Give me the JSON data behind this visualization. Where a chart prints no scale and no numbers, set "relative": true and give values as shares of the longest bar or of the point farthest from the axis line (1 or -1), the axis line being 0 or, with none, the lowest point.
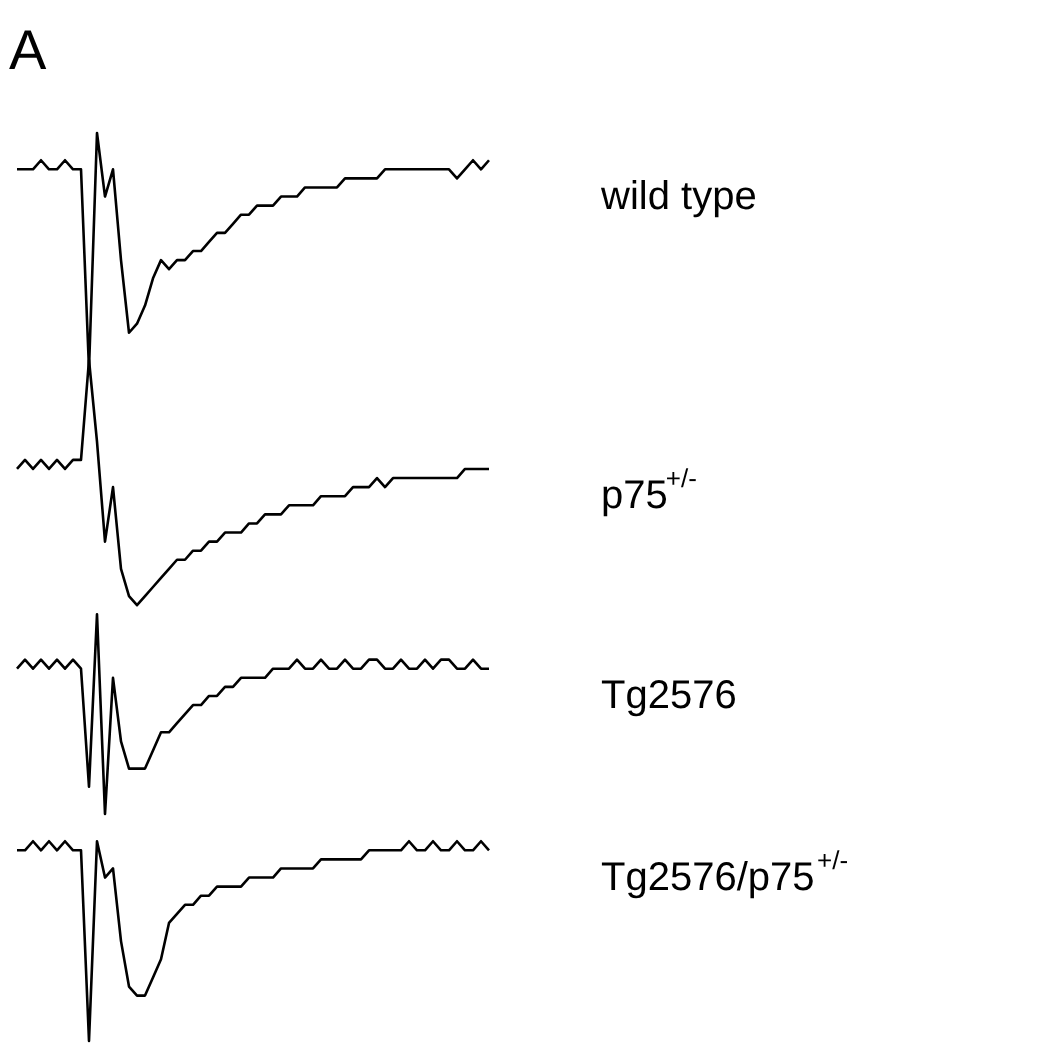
{
  "chart_data": {
    "type": "line",
    "title": "A",
    "relative": true,
    "categories": [
      null,
      null,
      null,
      null,
      null,
      null,
      null,
      null,
      null,
      null,
      null,
      null,
      null,
      null,
      null,
      null,
      null,
      null,
      null,
      null,
      null,
      null,
      null,
      null,
      null,
      null,
      null,
      null,
      null,
      null,
      null,
      null,
      null,
      null,
      null,
      null,
      null,
      null,
      null,
      null,
      null,
      null,
      null,
      null,
      null,
      null,
      null,
      null,
      null,
      null,
      null,
      null,
      null,
      null,
      null,
      null,
      null,
      null,
      null,
      null
    ],
    "series": [
      {
        "name": "wild type",
        "color": "#000000",
        "values": [
          0.96,
          0.96,
          0.96,
          0.97,
          0.96,
          0.96,
          0.97,
          0.96,
          0.96,
          0.74,
          1.0,
          0.93,
          0.96,
          0.86,
          0.78,
          0.79,
          0.81,
          0.84,
          0.86,
          0.85,
          0.86,
          0.86,
          0.87,
          0.87,
          0.88,
          0.89,
          0.89,
          0.9,
          0.91,
          0.91,
          0.92,
          0.92,
          0.92,
          0.93,
          0.93,
          0.93,
          0.94,
          0.94,
          0.94,
          0.94,
          0.94,
          0.95,
          0.95,
          0.95,
          0.95,
          0.95,
          0.96,
          0.96,
          0.96,
          0.96,
          0.96,
          0.96,
          0.96,
          0.96,
          0.96,
          0.95,
          0.96,
          0.97,
          0.96,
          0.97
        ]
      },
      {
        "name": "p75$^{+/-}$",
        "color": "#000000",
        "values": [
          0.63,
          0.64,
          0.63,
          0.64,
          0.63,
          0.64,
          0.63,
          0.64,
          0.64,
          0.75,
          0.66,
          0.55,
          0.61,
          0.52,
          0.49,
          0.48,
          0.49,
          0.5,
          0.51,
          0.52,
          0.53,
          0.53,
          0.54,
          0.54,
          0.55,
          0.55,
          0.56,
          0.56,
          0.56,
          0.57,
          0.57,
          0.58,
          0.58,
          0.58,
          0.59,
          0.59,
          0.59,
          0.59,
          0.6,
          0.6,
          0.6,
          0.6,
          0.61,
          0.61,
          0.61,
          0.62,
          0.61,
          0.62,
          0.62,
          0.62,
          0.62,
          0.62,
          0.62,
          0.62,
          0.62,
          0.62,
          0.63,
          0.63,
          0.63,
          0.63
        ]
      },
      {
        "name": "Tg2576",
        "color": "#000000",
        "values": [
          0.41,
          0.42,
          0.41,
          0.42,
          0.41,
          0.42,
          0.41,
          0.42,
          0.41,
          0.28,
          0.47,
          0.25,
          0.4,
          0.33,
          0.3,
          0.3,
          0.3,
          0.32,
          0.34,
          0.34,
          0.35,
          0.36,
          0.37,
          0.37,
          0.38,
          0.38,
          0.39,
          0.39,
          0.4,
          0.4,
          0.4,
          0.4,
          0.41,
          0.41,
          0.41,
          0.42,
          0.41,
          0.41,
          0.42,
          0.41,
          0.41,
          0.42,
          0.41,
          0.41,
          0.42,
          0.42,
          0.41,
          0.41,
          0.42,
          0.41,
          0.41,
          0.42,
          0.41,
          0.42,
          0.42,
          0.41,
          0.41,
          0.42,
          0.41,
          0.41
        ]
      },
      {
        "name": "Tg2576/p75$^{+/-}$",
        "color": "#000000",
        "values": [
          0.21,
          0.21,
          0.22,
          0.21,
          0.22,
          0.21,
          0.22,
          0.21,
          0.21,
          0.0,
          0.22,
          0.18,
          0.19,
          0.11,
          0.06,
          0.05,
          0.05,
          0.07,
          0.09,
          0.13,
          0.14,
          0.15,
          0.15,
          0.16,
          0.16,
          0.17,
          0.17,
          0.17,
          0.17,
          0.18,
          0.18,
          0.18,
          0.18,
          0.19,
          0.19,
          0.19,
          0.19,
          0.19,
          0.2,
          0.2,
          0.2,
          0.2,
          0.2,
          0.2,
          0.21,
          0.21,
          0.21,
          0.21,
          0.21,
          0.22,
          0.21,
          0.21,
          0.22,
          0.21,
          0.21,
          0.22,
          0.21,
          0.21,
          0.22,
          0.21
        ]
      }
    ]
  }
}
